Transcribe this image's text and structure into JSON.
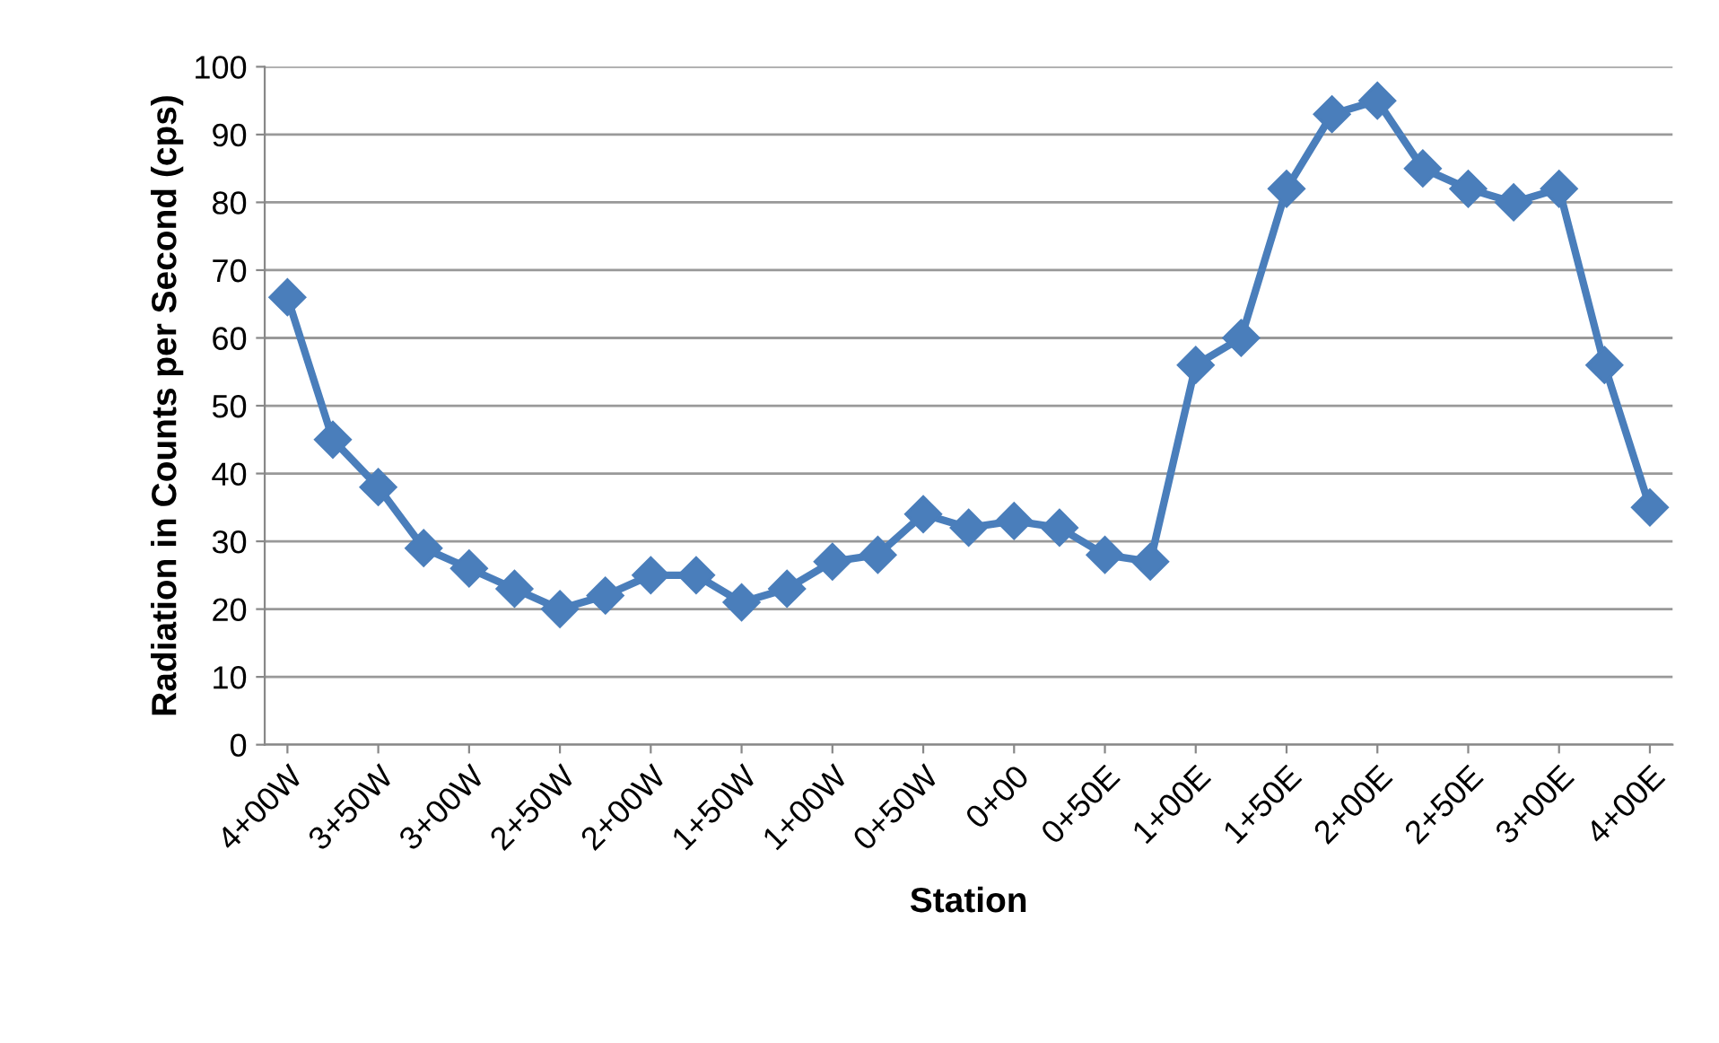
{
  "chart_data": {
    "type": "line",
    "xlabel": "Station",
    "ylabel": "Radiation in Counts per Second (cps)",
    "categories": [
      "4+00W",
      null,
      "3+50W",
      null,
      "3+00W",
      null,
      "2+50W",
      null,
      "2+00W",
      null,
      "1+50W",
      null,
      "1+00W",
      null,
      "0+50W",
      null,
      "0+00",
      null,
      "0+50E",
      null,
      "1+00E",
      null,
      "1+50E",
      null,
      "2+00E",
      null,
      "2+50E",
      null,
      "3+00E",
      null,
      "4+00E"
    ],
    "series": [
      {
        "color": "#4a7ebb",
        "values": [
          66,
          45,
          38,
          29,
          26,
          23,
          20,
          22,
          25,
          25,
          21,
          23,
          27,
          28,
          34,
          32,
          33,
          32,
          28,
          27,
          56,
          60,
          82,
          93,
          95,
          85,
          82,
          80,
          82,
          56,
          35
        ]
      }
    ],
    "ylim": [
      0,
      100
    ],
    "yticks": [
      0,
      10,
      20,
      30,
      40,
      50,
      60,
      70,
      80,
      90,
      100
    ],
    "grid": "y",
    "marker": "diamond",
    "line_style": "solid",
    "legend": false
  }
}
